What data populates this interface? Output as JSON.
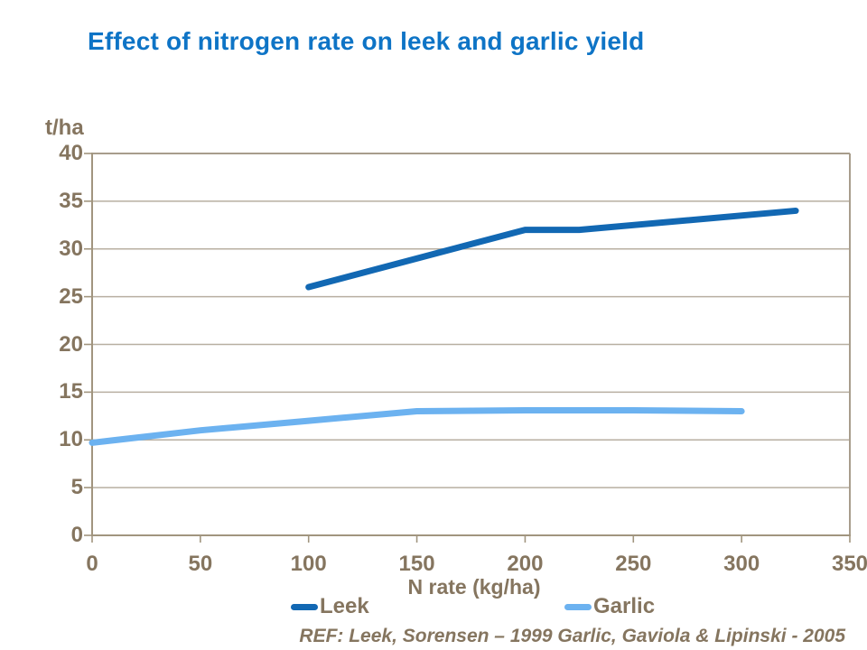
{
  "title": "Effect of nitrogen rate on leek and garlic yield",
  "colors": {
    "title_text": "#0e74c6",
    "axis_text": "#85755f",
    "axis_line": "#a1957f",
    "grid_line": "#b8afa1",
    "plot_border": "#a89d8c",
    "leek_line": "#1268b3",
    "garlic_line": "#6cb2f0",
    "background": "#ffffff"
  },
  "chart_data": {
    "type": "line",
    "title": "Effect of nitrogen rate on leek and garlic yield",
    "xlabel": "N rate (kg/ha)",
    "ylabel": "t/ha",
    "xlim": [
      0,
      350
    ],
    "ylim": [
      0,
      40
    ],
    "x_ticks": [
      0,
      50,
      100,
      150,
      200,
      250,
      300,
      350
    ],
    "y_ticks": [
      0,
      5,
      10,
      15,
      20,
      25,
      30,
      35,
      40
    ],
    "grid": "horizontal gridlines at each y tick, top and right plot border, no vertical gridlines",
    "legend_position": "bottom",
    "series": [
      {
        "name": "Leek",
        "color": "#1268b3",
        "x": [
          100,
          200,
          225,
          325
        ],
        "y": [
          26,
          32,
          32,
          34
        ]
      },
      {
        "name": "Garlic",
        "color": "#6cb2f0",
        "x": [
          0,
          50,
          100,
          150,
          200,
          250,
          300
        ],
        "y": [
          9.7,
          11,
          12,
          13,
          13.1,
          13.1,
          13
        ]
      }
    ],
    "footnote": "REF: Leek, Sorensen – 1999 Garlic, Gaviola & Lipinski - 2005"
  }
}
